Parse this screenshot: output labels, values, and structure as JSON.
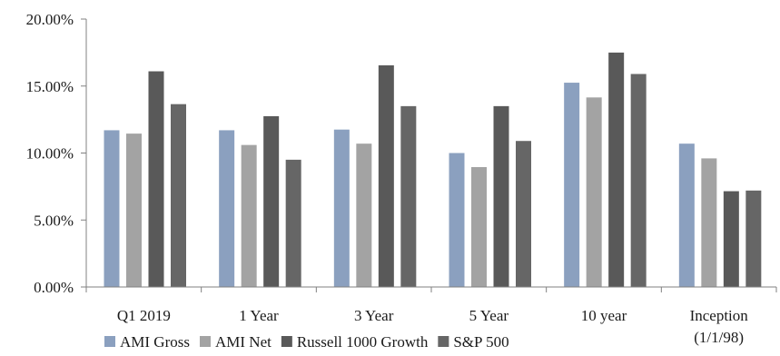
{
  "chart_data": {
    "type": "bar",
    "categories": [
      [
        "Q1 2019"
      ],
      [
        "1 Year"
      ],
      [
        "3 Year"
      ],
      [
        "5 Year"
      ],
      [
        "10 year"
      ],
      [
        "Inception",
        "(1/1/98)"
      ]
    ],
    "series": [
      {
        "name": "AMI Gross",
        "color": "#8ba0bf",
        "values": [
          11.7,
          11.7,
          11.75,
          10.0,
          15.25,
          10.7
        ]
      },
      {
        "name": "AMI Net",
        "color": "#a3a3a3",
        "values": [
          11.45,
          10.6,
          10.7,
          8.95,
          14.15,
          9.6
        ]
      },
      {
        "name": "Russell 1000 Growth",
        "color": "#595959",
        "values": [
          16.1,
          12.75,
          16.55,
          13.5,
          17.5,
          7.15
        ]
      },
      {
        "name": "S&P 500",
        "color": "#666666",
        "values": [
          13.65,
          9.5,
          13.5,
          10.9,
          15.9,
          7.2
        ]
      }
    ],
    "ylim": [
      0,
      20
    ],
    "yticks": [
      "0.00%",
      "5.00%",
      "10.00%",
      "15.00%",
      "20.00%"
    ],
    "ytick_values": [
      0,
      5,
      10,
      15,
      20
    ],
    "grid": false,
    "legend_position": "bottom"
  }
}
